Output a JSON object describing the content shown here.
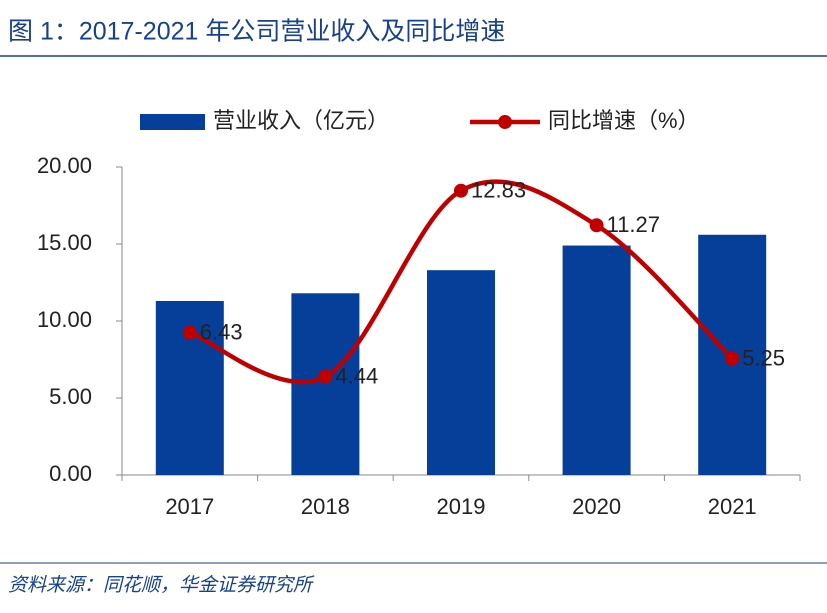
{
  "title": "图 1：2017-2021 年公司营业收入及同比增速",
  "source": "资料来源：同花顺，华金证券研究所",
  "chart_data": {
    "type": "bar-line",
    "categories": [
      "2017",
      "2018",
      "2019",
      "2020",
      "2021"
    ],
    "series": [
      {
        "name": "营业收入（亿元）",
        "type": "bar",
        "color": "#063f9a",
        "values": [
          11.3,
          11.8,
          13.3,
          14.9,
          15.6
        ]
      },
      {
        "name": "同比增速（%）",
        "type": "line",
        "color": "#c00000",
        "axis": "y2",
        "values": [
          6.43,
          4.44,
          12.83,
          11.27,
          5.25
        ],
        "smooth": true
      }
    ],
    "ylim": [
      0,
      20
    ],
    "yticks": [
      {
        "value": 0,
        "label": "0.00"
      },
      {
        "value": 5,
        "label": "5.00"
      },
      {
        "value": 10,
        "label": "10.00"
      },
      {
        "value": 15,
        "label": "15.00"
      },
      {
        "value": 20,
        "label": "20.00"
      }
    ],
    "y2lim": [
      0,
      13.9
    ],
    "legend": "top"
  }
}
